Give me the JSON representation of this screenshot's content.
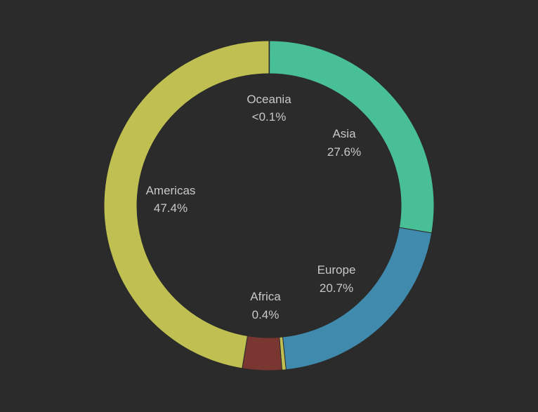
{
  "chart_data": {
    "type": "pie",
    "variant": "donut",
    "title": "",
    "slices": [
      {
        "label": "Oceania",
        "value": 0.05,
        "display": "<0.1%",
        "color": "#5b6b6e"
      },
      {
        "label": "Asia",
        "value": 27.6,
        "display": "27.6%",
        "color": "#48bf96"
      },
      {
        "label": "Europe",
        "value": 20.7,
        "display": "20.7%",
        "color": "#3f8aad"
      },
      {
        "label": "Africa",
        "value": 0.4,
        "display": "0.4%",
        "color": "#c0c052"
      },
      {
        "label": "Africa-segment",
        "value": 3.85,
        "display": "",
        "color": "#7a3630"
      },
      {
        "label": "Americas",
        "value": 47.4,
        "display": "47.4%",
        "color": "#c0c052"
      }
    ]
  },
  "background_color": "#2b2b2b",
  "label_color": "#c8c8c8"
}
